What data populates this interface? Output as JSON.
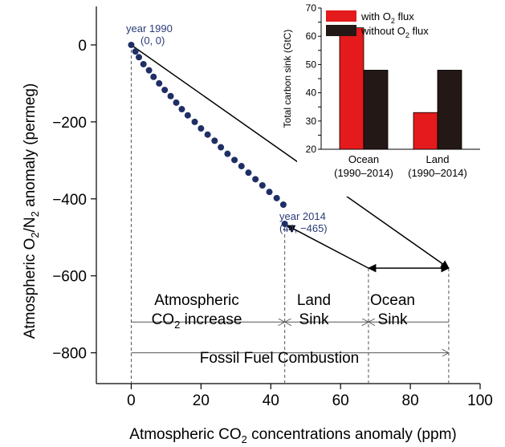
{
  "chart_data": [
    {
      "type": "scatter",
      "xlabel_pre": "Atmospheric CO",
      "xlabel_sub": "2",
      "xlabel_post": " concentrations anomaly (ppm)",
      "ylabel_pre": "Atmospheric O",
      "ylabel_sub1": "2",
      "ylabel_mid": "/N",
      "ylabel_sub2": "2",
      "ylabel_post": " anomaly (permeg)",
      "xlim": [
        -10,
        100
      ],
      "ylim": [
        -880,
        100
      ],
      "x_ticks": [
        0,
        20,
        40,
        60,
        80,
        100
      ],
      "y_ticks": [
        0,
        -200,
        -400,
        -600,
        -800
      ],
      "x_tick_labels": [
        "0",
        "20",
        "40",
        "60",
        "80",
        "100"
      ],
      "y_tick_labels": [
        "0",
        "−200",
        "−400",
        "−600",
        "−800"
      ],
      "series": [
        {
          "points": [
            [
              0,
              0
            ],
            [
              1.2,
              -17
            ],
            [
              2.2,
              -32
            ],
            [
              3.5,
              -50
            ],
            [
              5.1,
              -66
            ],
            [
              6.4,
              -83
            ],
            [
              8,
              -100
            ],
            [
              9.6,
              -117
            ],
            [
              11.3,
              -133
            ],
            [
              12.9,
              -150
            ],
            [
              14.5,
              -167
            ],
            [
              16.2,
              -183
            ],
            [
              18.2,
              -200
            ],
            [
              20,
              -217
            ],
            [
              21.9,
              -233
            ],
            [
              23.9,
              -249
            ],
            [
              25.7,
              -266
            ],
            [
              27.6,
              -283
            ],
            [
              29.6,
              -299
            ],
            [
              31.6,
              -315
            ],
            [
              33.6,
              -332
            ],
            [
              35.6,
              -349
            ],
            [
              37.6,
              -365
            ],
            [
              39.6,
              -382
            ],
            [
              41.7,
              -398
            ],
            [
              43.6,
              -415
            ],
            [
              44,
              -465
            ]
          ],
          "color": "#1f2f66"
        }
      ],
      "annotations": {
        "start_label": "year 1990",
        "start_coords": "(0, 0)",
        "end_label": "year 2014",
        "end_coords": "(44, −465)",
        "budget_labels": {
          "co2_line1": "Atmospheric",
          "co2_line2_pre": "CO",
          "co2_line2_sub": "2",
          "co2_line2_post": " increase",
          "land_line1": "Land",
          "land_line2": "Sink",
          "ocean_line1": "Ocean",
          "ocean_line2": "Sink",
          "fossil": "Fossil Fuel Combustion"
        },
        "budget_points": {
          "start": [
            0,
            0
          ],
          "end": [
            44,
            -465
          ],
          "land_corner": [
            68,
            -580
          ],
          "fossil_end": [
            91,
            -580
          ],
          "fossil_line_y": -800,
          "partition_line_y": -720
        }
      }
    },
    {
      "type": "bar",
      "ylabel": "Total carbon sink (GtC)",
      "ylim": [
        20,
        70
      ],
      "y_ticks": [
        20,
        25,
        30,
        35,
        40,
        45,
        50,
        55,
        60,
        65,
        70
      ],
      "categories_line1": [
        "Ocean",
        "Land"
      ],
      "categories_line2": [
        "(1990–2014)",
        "(1990–2014)"
      ],
      "series": [
        {
          "name_pre": "with O",
          "name_sub": "2",
          "name_post": " flux",
          "color": "#e41a1c",
          "values": [
            63,
            33
          ]
        },
        {
          "name": "without O₂ flux",
          "name_pre": "without O",
          "name_sub": "2",
          "name_post": " flux",
          "color": "#231815",
          "values": [
            48,
            48
          ]
        }
      ],
      "legend": "top-left"
    }
  ]
}
